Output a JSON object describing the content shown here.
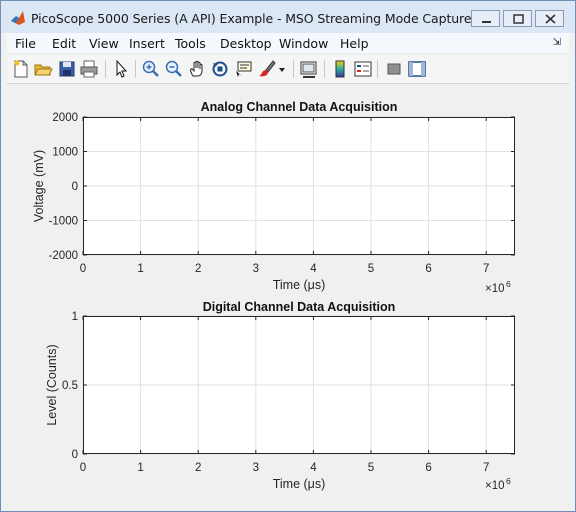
{
  "window": {
    "title": "PicoScope 5000 Series (A API) Example - MSO Streaming Mode Capture"
  },
  "menubar": {
    "items": [
      "File",
      "Edit",
      "View",
      "Insert",
      "Tools",
      "Desktop",
      "Window",
      "Help"
    ]
  },
  "toolbar": {
    "icons": [
      "new-figure-icon",
      "open-file-icon",
      "save-icon",
      "print-icon",
      "select-arrow-icon",
      "zoom-in-icon",
      "zoom-out-icon",
      "pan-hand-icon",
      "rotate-3d-icon",
      "data-cursor-icon",
      "brush-icon",
      "brush-dropdown-icon",
      "link-plot-icon",
      "insert-colorbar-icon",
      "insert-legend-icon",
      "hide-plot-tools-icon",
      "show-plot-tools-icon"
    ]
  },
  "chart_data": [
    {
      "type": "line",
      "title": "Analog Channel Data Acquisition",
      "xlabel": "Time (μs)",
      "ylabel": "Voltage (mV)",
      "x_ticks": [
        "0",
        "1",
        "2",
        "3",
        "4",
        "5",
        "6",
        "7"
      ],
      "y_ticks": [
        "2000",
        "1000",
        "0",
        "-1000",
        "-2000"
      ],
      "xlim": [
        0,
        7.5
      ],
      "ylim": [
        -2000,
        2000
      ],
      "x_multiplier": "×10",
      "x_multiplier_exp": "6",
      "grid": true,
      "series": []
    },
    {
      "type": "line",
      "title": "Digital Channel Data Acquisition",
      "xlabel": "Time (μs)",
      "ylabel": "Level (Counts)",
      "x_ticks": [
        "0",
        "1",
        "2",
        "3",
        "4",
        "5",
        "6",
        "7"
      ],
      "y_ticks": [
        "1",
        "0.5",
        "0"
      ],
      "xlim": [
        0,
        7.5
      ],
      "ylim": [
        0,
        1
      ],
      "x_multiplier": "×10",
      "x_multiplier_exp": "6",
      "grid": true,
      "series": []
    }
  ]
}
